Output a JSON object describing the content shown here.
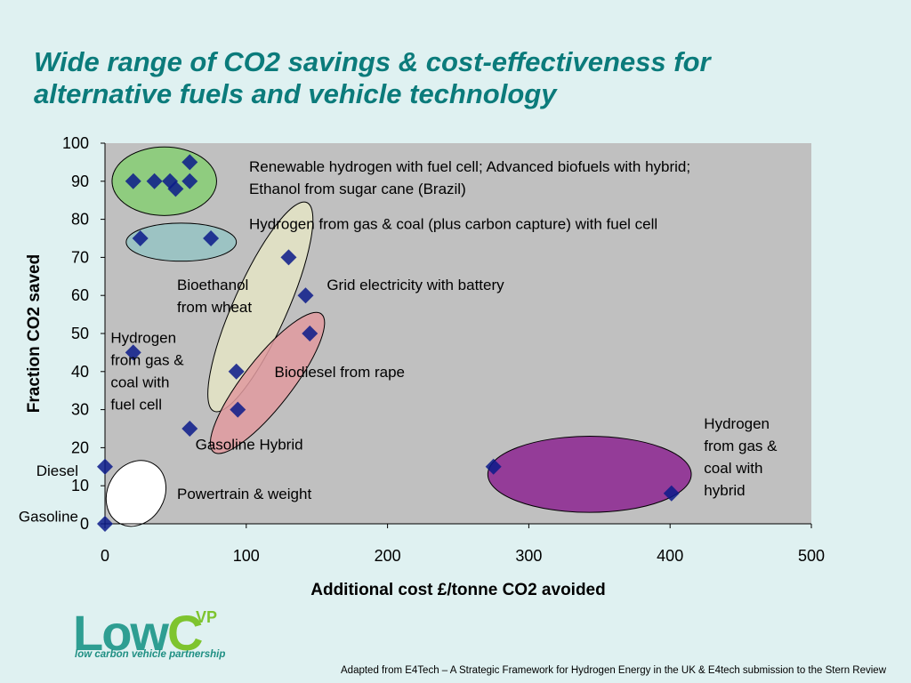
{
  "title": {
    "line1": "Wide range of CO2 savings & cost-effectiveness for",
    "line2": "alternative fuels and vehicle technology"
  },
  "logo": {
    "main": "LowC",
    "superscript": "VP",
    "tagline": "low carbon vehicle partnership"
  },
  "source_note": "Adapted from E4Tech – A Strategic Framework for Hydrogen Energy in the UK & E4tech submission to the Stern Review",
  "chart_data": {
    "type": "scatter",
    "xlabel": "Additional cost £/tonne CO2 avoided",
    "ylabel": "Fraction CO2 saved",
    "xlim": [
      0,
      500
    ],
    "ylim": [
      0,
      100
    ],
    "xticks": [
      0,
      100,
      200,
      300,
      400,
      500
    ],
    "yticks": [
      0,
      10,
      20,
      30,
      40,
      50,
      60,
      70,
      80,
      90,
      100
    ],
    "plot_background": "#c0c0c0",
    "marker_color": "#0a1a8a",
    "grid": false,
    "points": [
      {
        "x": 0,
        "y": 0
      },
      {
        "x": 0,
        "y": 15
      },
      {
        "x": 20,
        "y": 45
      },
      {
        "x": 60,
        "y": 25
      },
      {
        "x": 20,
        "y": 90
      },
      {
        "x": 35,
        "y": 90
      },
      {
        "x": 46,
        "y": 90
      },
      {
        "x": 50,
        "y": 88
      },
      {
        "x": 60,
        "y": 90
      },
      {
        "x": 60,
        "y": 95
      },
      {
        "x": 25,
        "y": 75
      },
      {
        "x": 75,
        "y": 75
      },
      {
        "x": 130,
        "y": 70
      },
      {
        "x": 142,
        "y": 60
      },
      {
        "x": 145,
        "y": 50
      },
      {
        "x": 93,
        "y": 40
      },
      {
        "x": 94,
        "y": 30
      },
      {
        "x": 275,
        "y": 15
      },
      {
        "x": 401,
        "y": 8
      }
    ],
    "groups": [
      {
        "name": "Renewable hydrogen with fuel cell; Advanced biofuels with hybrid; Ethanol from sugar cane (Brazil)",
        "fill": "#8fcc7f",
        "cx": 42,
        "cy": 90,
        "rx": 37,
        "ry": 9
      },
      {
        "name": "Hydrogen from gas & coal (plus carbon capture) with fuel cell",
        "fill": "#9cc3c3",
        "cx": 54,
        "cy": 74,
        "rx": 39,
        "ry": 5
      },
      {
        "name": "Bioethanol from wheat",
        "fill": "#e4e4c4",
        "cx": 110,
        "cy": 57,
        "rx": 19,
        "ry": 30,
        "rotate": 24
      },
      {
        "name": "Biodiesel from rape",
        "fill": "#e09a9f",
        "cx": 115,
        "cy": 37,
        "rx": 17,
        "ry": 23,
        "rotate": 38
      },
      {
        "name": "Hydrogen from gas & coal with hybrid",
        "fill": "#943c98",
        "cx": 343,
        "cy": 13,
        "rx": 72,
        "ry": 10
      },
      {
        "name": "Powertrain & weight",
        "fill": "#ffffff",
        "cx": 22,
        "cy": 8,
        "rx": 20,
        "ry": 9,
        "rotate": 30
      }
    ],
    "annotations": [
      {
        "lines": [
          "Renewable hydrogen with fuel cell; Advanced biofuels with hybrid;",
          "Ethanol from sugar cane (Brazil)"
        ],
        "x": 102,
        "y": 92.5
      },
      {
        "lines": [
          "Hydrogen from gas & coal (plus carbon capture) with fuel cell"
        ],
        "x": 102,
        "y": 77.5
      },
      {
        "lines": [
          "Grid electricity with battery"
        ],
        "x": 157,
        "y": 61.5
      },
      {
        "lines": [
          "Bioethanol",
          "from wheat"
        ],
        "x": 51,
        "y": 61.5
      },
      {
        "lines": [
          "Hydrogen",
          "from gas &",
          "coal with",
          "fuel cell"
        ],
        "x": 4,
        "y": 47.5
      },
      {
        "lines": [
          "Biodiesel from rape"
        ],
        "x": 120,
        "y": 38.5
      },
      {
        "lines": [
          "Gasoline Hybrid"
        ],
        "x": 64,
        "y": 19.5
      },
      {
        "lines": [
          "Powertrain & weight"
        ],
        "x": 51,
        "y": 6.5
      },
      {
        "lines": [
          "Hydrogen",
          "from gas &",
          "coal with",
          "hybrid"
        ],
        "x": 424,
        "y": 25
      }
    ],
    "side_labels": [
      {
        "text": "Diesel",
        "y": 14
      },
      {
        "text": "Gasoline",
        "y": 2
      }
    ]
  }
}
